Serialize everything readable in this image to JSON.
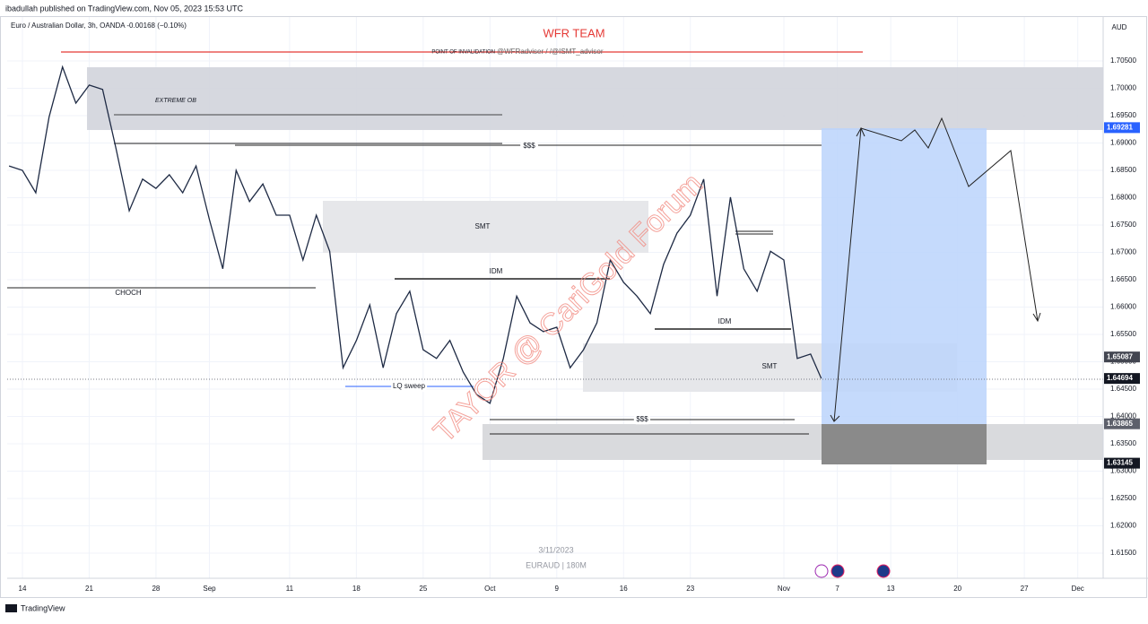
{
  "header": {
    "publisher": "ibadullah published on TradingView.com, Nov 05, 2023 15:53 UTC",
    "symbol": "Euro / Australian Dollar, 3h, OANDA  -0.00168 (−0.10%)",
    "team": "WFR TEAM",
    "currency": "AUD",
    "watermark_date": "3/11/2023",
    "watermark_symbol": "EURAUD | 180M",
    "overlay": "TAYOR @ CariGold Forum",
    "brand": "TradingView"
  },
  "annotations": {
    "invalidation": "POINT OF INVALIDATION",
    "handles": "@WFRadviser / /@ISMT_advisor",
    "ob": "EXTREME OB",
    "sss_top": "$$$",
    "sss_bottom": "$$$",
    "smt_top": "SMT",
    "smt_bottom": "SMT",
    "idm_left": "IDM",
    "idm_right": "IDM",
    "choch": "CHOCH",
    "lq": "LQ sweep"
  },
  "chart_data": {
    "type": "line",
    "color": "#1e2a44",
    "grid": true,
    "x": [
      -1,
      0,
      1,
      2,
      3,
      4,
      5,
      6,
      7,
      8,
      9,
      10,
      11,
      12,
      13,
      14,
      15,
      16,
      17,
      18,
      19,
      20,
      21,
      22,
      23,
      24,
      25,
      26,
      27,
      28,
      29,
      30,
      31,
      32,
      33,
      34,
      35,
      36,
      37,
      38,
      39,
      40,
      41,
      42,
      43,
      44,
      45,
      46,
      47,
      48,
      49,
      50,
      51,
      52,
      53,
      54,
      55,
      56,
      57,
      58,
      59,
      59.8
    ],
    "values": [
      1.6858,
      1.685,
      1.6809,
      1.6948,
      1.7039,
      1.6973,
      1.7006,
      1.6998,
      1.6891,
      1.6776,
      1.6834,
      1.6817,
      1.6842,
      1.6809,
      1.6858,
      1.676,
      1.667,
      1.685,
      1.6793,
      1.6825,
      1.6768,
      1.6768,
      1.6686,
      1.6768,
      1.6702,
      1.6489,
      1.6539,
      1.6604,
      1.6489,
      1.6588,
      1.6629,
      1.6522,
      1.6506,
      1.6539,
      1.6481,
      1.644,
      1.6424,
      1.6506,
      1.662,
      1.6571,
      1.6555,
      1.6563,
      1.6489,
      1.6522,
      1.6571,
      1.6686,
      1.6645,
      1.662,
      1.6588,
      1.6678,
      1.6735,
      1.6768,
      1.6834,
      1.662,
      1.6801,
      1.667,
      1.6629,
      1.6702,
      1.6686,
      1.6506,
      1.6514,
      1.64694
    ],
    "xlim": [
      -1.14,
      80.9
    ],
    "ylim": [
      1.6104,
      1.7132
    ],
    "xticks": [
      {
        "value": 0,
        "label": "14"
      },
      {
        "value": 5,
        "label": "21"
      },
      {
        "value": 10,
        "label": "28"
      },
      {
        "value": 14,
        "label": "Sep"
      },
      {
        "value": 20,
        "label": "11"
      },
      {
        "value": 25,
        "label": "18"
      },
      {
        "value": 30,
        "label": "25"
      },
      {
        "value": 35,
        "label": "Oct"
      },
      {
        "value": 40,
        "label": "9"
      },
      {
        "value": 45,
        "label": "16"
      },
      {
        "value": 50,
        "label": "23"
      },
      {
        "value": 57,
        "label": "Nov"
      },
      {
        "value": 61,
        "label": "7"
      },
      {
        "value": 65,
        "label": "13"
      },
      {
        "value": 70,
        "label": "20"
      },
      {
        "value": 75,
        "label": "27"
      },
      {
        "value": 79,
        "label": "Dec"
      }
    ],
    "yticks": [
      {
        "value": 1.705,
        "label": "1.70500"
      },
      {
        "value": 1.7,
        "label": "1.70000"
      },
      {
        "value": 1.695,
        "label": "1.69500"
      },
      {
        "value": 1.69,
        "label": "1.69000"
      },
      {
        "value": 1.685,
        "label": "1.68500"
      },
      {
        "value": 1.68,
        "label": "1.68000"
      },
      {
        "value": 1.675,
        "label": "1.67500"
      },
      {
        "value": 1.67,
        "label": "1.67000"
      },
      {
        "value": 1.665,
        "label": "1.66500"
      },
      {
        "value": 1.66,
        "label": "1.66000"
      },
      {
        "value": 1.655,
        "label": "1.65500"
      },
      {
        "value": 1.65,
        "label": "1.65000"
      },
      {
        "value": 1.645,
        "label": "1.64500"
      },
      {
        "value": 1.64,
        "label": "1.64000"
      },
      {
        "value": 1.635,
        "label": "1.63500"
      },
      {
        "value": 1.63,
        "label": "1.63000"
      },
      {
        "value": 1.625,
        "label": "1.62500"
      },
      {
        "value": 1.62,
        "label": "1.62000"
      },
      {
        "value": 1.615,
        "label": "1.61500"
      }
    ],
    "price_labels": [
      {
        "value": 1.69281,
        "color": "#2962ff"
      },
      {
        "value": 1.65087,
        "color": "#434651"
      },
      {
        "value": 1.64694,
        "color": "#131722"
      },
      {
        "value": 1.63865,
        "color": "#5d606b"
      },
      {
        "value": 1.63145,
        "color": "#131722"
      }
    ]
  }
}
